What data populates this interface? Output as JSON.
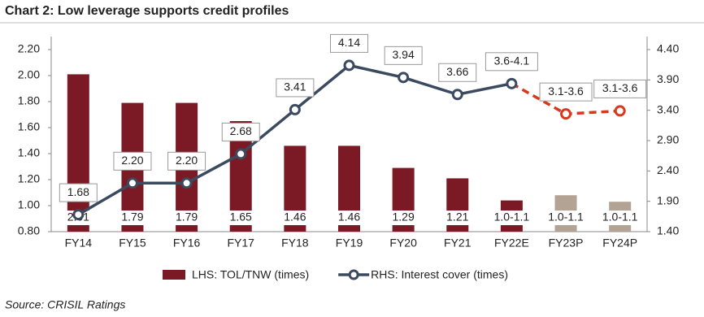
{
  "chart_data": {
    "type": "bar-line",
    "title": "Chart 2: Low leverage supports credit profiles",
    "source": "Source: CRISIL Ratings",
    "categories": [
      "FY14",
      "FY15",
      "FY16",
      "FY17",
      "FY18",
      "FY19",
      "FY20",
      "FY21",
      "FY22E",
      "FY23P",
      "FY24P"
    ],
    "series": [
      {
        "name": "LHS: TOL/TNW (times)",
        "type": "bar",
        "color": "#7b1a24",
        "colors": [
          "#7b1a24",
          "#7b1a24",
          "#7b1a24",
          "#7b1a24",
          "#7b1a24",
          "#7b1a24",
          "#7b1a24",
          "#7b1a24",
          "#7b1a24",
          "#b3a394",
          "#b3a394"
        ],
        "values": [
          2.01,
          1.79,
          1.79,
          1.65,
          1.46,
          1.46,
          1.29,
          1.21,
          1.04,
          1.08,
          1.03
        ],
        "value_labels": [
          "2.01",
          "1.79",
          "1.79",
          "1.65",
          "1.46",
          "1.46",
          "1.29",
          "1.21",
          "1.0-1.1",
          "1.0-1.1",
          "1.0-1.1"
        ]
      },
      {
        "name": "RHS: Interest cover (times)",
        "type": "line",
        "axis": "y2",
        "color": "#3b4a5e",
        "projected_color": "#d9381e",
        "projected": [
          false,
          false,
          false,
          false,
          false,
          false,
          false,
          false,
          false,
          true,
          true
        ],
        "values": [
          1.68,
          2.2,
          2.2,
          2.68,
          3.41,
          4.14,
          3.94,
          3.66,
          3.84,
          3.34,
          3.39
        ],
        "value_labels": [
          "1.68",
          "2.20",
          "2.20",
          "2.68",
          "3.41",
          "4.14",
          "3.94",
          "3.66",
          "3.6-4.1",
          "3.1-3.6",
          "3.1-3.6"
        ]
      }
    ],
    "ylim": [
      0.8,
      2.2
    ],
    "yticks": [
      {
        "value": 0.8,
        "label": "0.80"
      },
      {
        "value": 1,
        "label": "1.00"
      },
      {
        "value": 1.2,
        "label": "1.20"
      },
      {
        "value": 1.4,
        "label": "1.40"
      },
      {
        "value": 1.6,
        "label": "1.60"
      },
      {
        "value": 1.8,
        "label": "1.80"
      },
      {
        "value": 2,
        "label": "2.00"
      },
      {
        "value": 2.2,
        "label": "2.20"
      }
    ],
    "y2lim": [
      1.4,
      4.4
    ],
    "y2ticks": [
      {
        "value": 1.4,
        "label": "1.40"
      },
      {
        "value": 1.9,
        "label": "1.90"
      },
      {
        "value": 2.4,
        "label": "2.40"
      },
      {
        "value": 2.9,
        "label": "2.90"
      },
      {
        "value": 3.4,
        "label": "3.40"
      },
      {
        "value": 3.9,
        "label": "3.90"
      },
      {
        "value": 4.4,
        "label": "4.40"
      }
    ],
    "grid": false
  }
}
